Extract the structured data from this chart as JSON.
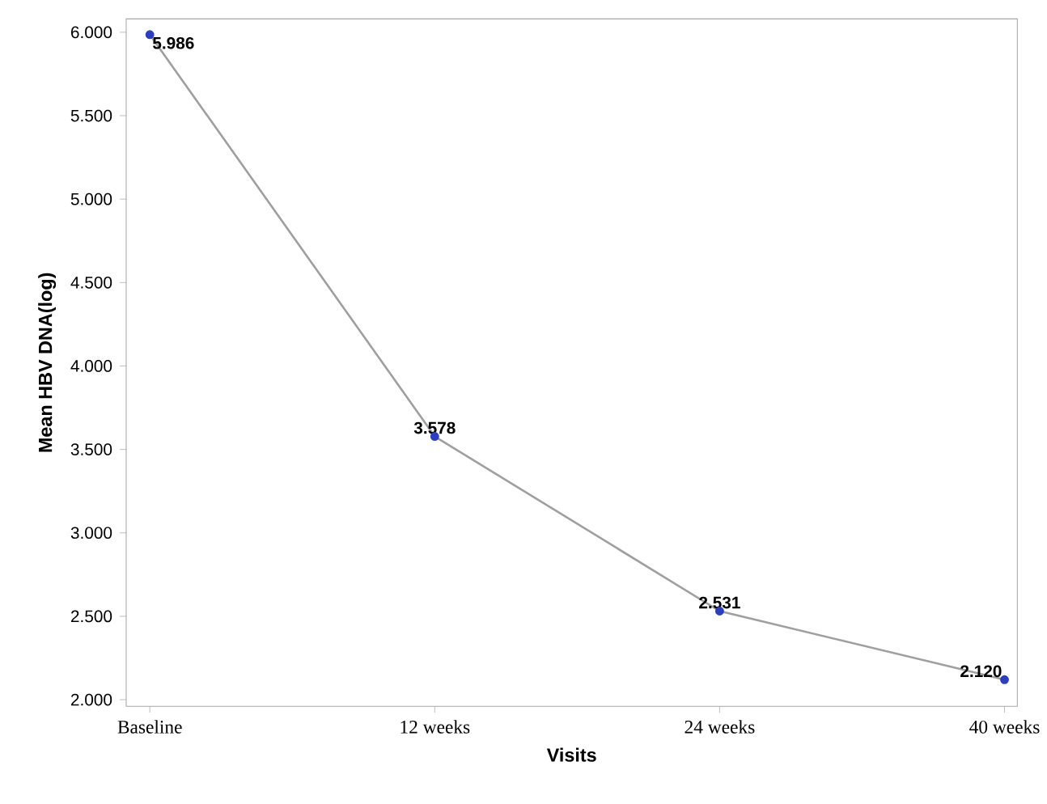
{
  "chart_data": {
    "type": "line",
    "xlabel": "Visits",
    "ylabel": "Mean HBV DNA(log)",
    "categories": [
      "Baseline",
      "12 weeks",
      "24 weeks",
      "40 weeks"
    ],
    "values": [
      5.986,
      3.578,
      2.531,
      2.12
    ],
    "value_labels": [
      "5.986",
      "3.578",
      "2.531",
      "2.120"
    ],
    "color": "#2b3fbf",
    "marker": "circle",
    "line_style": "solid",
    "grid": false,
    "ylim": [
      1.96,
      6.08
    ],
    "yticks": [
      {
        "value": 2,
        "label": "2.000"
      },
      {
        "value": 2.5,
        "label": "2.500"
      },
      {
        "value": 3,
        "label": "3.000"
      },
      {
        "value": 3.5,
        "label": "3.500"
      },
      {
        "value": 4,
        "label": "4.000"
      },
      {
        "value": 4.5,
        "label": "4.500"
      },
      {
        "value": 5,
        "label": "5.000"
      },
      {
        "value": 5.5,
        "label": "5.500"
      },
      {
        "value": 6,
        "label": "6.000"
      }
    ]
  }
}
